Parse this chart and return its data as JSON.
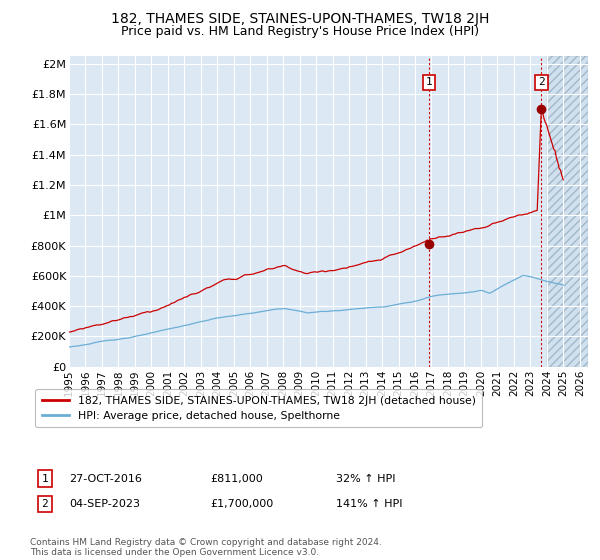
{
  "title": "182, THAMES SIDE, STAINES-UPON-THAMES, TW18 2JH",
  "subtitle": "Price paid vs. HM Land Registry's House Price Index (HPI)",
  "ylabel_ticks": [
    "£0",
    "£200K",
    "£400K",
    "£600K",
    "£800K",
    "£1M",
    "£1.2M",
    "£1.4M",
    "£1.6M",
    "£1.8M",
    "£2M"
  ],
  "ytick_values": [
    0,
    200000,
    400000,
    600000,
    800000,
    1000000,
    1200000,
    1400000,
    1600000,
    1800000,
    2000000
  ],
  "ylim": [
    0,
    2050000
  ],
  "xlim_start": 1995.0,
  "xlim_end": 2026.5,
  "xtick_years": [
    1995,
    1996,
    1997,
    1998,
    1999,
    2000,
    2001,
    2002,
    2003,
    2004,
    2005,
    2006,
    2007,
    2008,
    2009,
    2010,
    2011,
    2012,
    2013,
    2014,
    2015,
    2016,
    2017,
    2018,
    2019,
    2020,
    2021,
    2022,
    2023,
    2024,
    2025,
    2026
  ],
  "hpi_color": "#6baed6",
  "price_color": "#cc0000",
  "marker_color": "#990000",
  "vline_color": "#cc0000",
  "sale1_x": 2016.83,
  "sale1_y": 811000,
  "sale2_x": 2023.67,
  "sale2_y": 1700000,
  "legend_label_price": "182, THAMES SIDE, STAINES-UPON-THAMES, TW18 2JH (detached house)",
  "legend_label_hpi": "HPI: Average price, detached house, Spelthorne",
  "table_row1": [
    "1",
    "27-OCT-2016",
    "£811,000",
    "32% ↑ HPI"
  ],
  "table_row2": [
    "2",
    "04-SEP-2023",
    "£1,700,000",
    "141% ↑ HPI"
  ],
  "footnote": "Contains HM Land Registry data © Crown copyright and database right 2024.\nThis data is licensed under the Open Government Licence v3.0.",
  "bg_color": "#ffffff",
  "plot_bg_color": "#dce9f5",
  "grid_color": "#ffffff",
  "hatch_color": "#c8d8e8",
  "highlight_bg": "#c8d8f0"
}
